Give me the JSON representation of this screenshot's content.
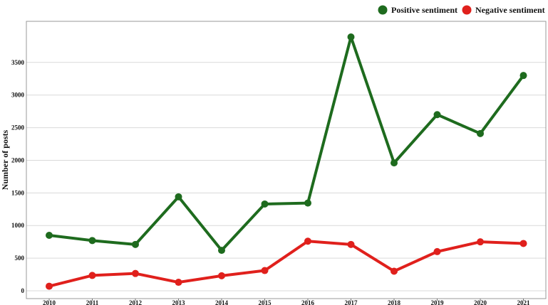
{
  "chart_data": {
    "type": "line",
    "title": "",
    "xlabel": "",
    "ylabel": "Number of posts",
    "x": [
      2010,
      2011,
      2012,
      2013,
      2014,
      2015,
      2016,
      2017,
      2018,
      2019,
      2020,
      2021
    ],
    "x_tick_labels": [
      "2010",
      "2011",
      "2012",
      "2013",
      "2014",
      "2015",
      "2016",
      "2017",
      "2018",
      "2019",
      "2020",
      "2021"
    ],
    "y_ticks": [
      0,
      500,
      1000,
      1500,
      2000,
      2500,
      3000,
      3500
    ],
    "y_tick_labels": [
      "0",
      "500",
      "1000",
      "1500",
      "2000",
      "2500",
      "3000",
      "3500"
    ],
    "ylim": [
      -120,
      4130
    ],
    "grid": true,
    "legend_position": "top-right",
    "series": [
      {
        "name": "Positive sentiment",
        "color": "#1e6b1e",
        "values": [
          850,
          770,
          710,
          1440,
          620,
          1330,
          1345,
          3890,
          1960,
          2700,
          2410,
          3300
        ]
      },
      {
        "name": "Negative sentiment",
        "color": "#e0201c",
        "values": [
          70,
          235,
          265,
          130,
          230,
          310,
          760,
          710,
          300,
          600,
          750,
          725
        ]
      }
    ]
  }
}
